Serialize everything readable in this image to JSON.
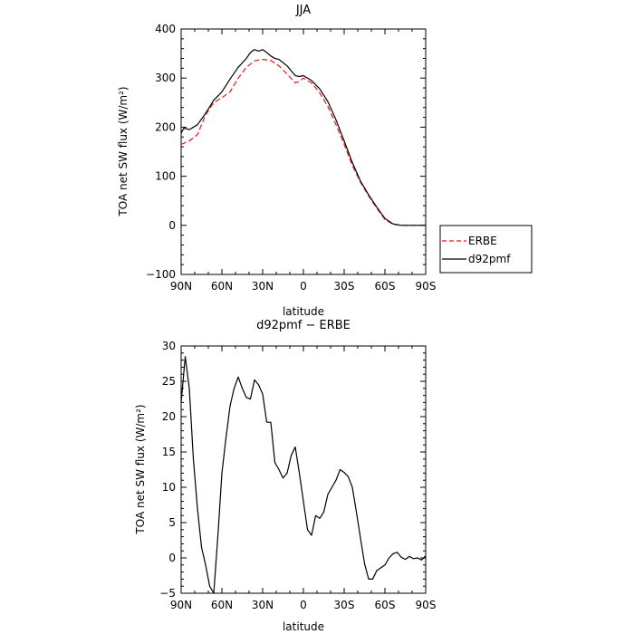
{
  "chart_data": [
    {
      "type": "line",
      "title": "JJA",
      "xlabel": "latitude",
      "ylabel": "TOA net SW flux (W/m²)",
      "xlim": [
        90,
        -90
      ],
      "ylim": [
        -100,
        400
      ],
      "xticks": [
        {
          "value": 90,
          "label": "90N"
        },
        {
          "value": 60,
          "label": "60N"
        },
        {
          "value": 30,
          "label": "30N"
        },
        {
          "value": 0,
          "label": "0"
        },
        {
          "value": -30,
          "label": "30S"
        },
        {
          "value": -60,
          "label": "60S"
        },
        {
          "value": -90,
          "label": "90S"
        }
      ],
      "yticks": [
        -100,
        0,
        100,
        200,
        300,
        400
      ],
      "legend": "outside-right",
      "series": [
        {
          "name": "ERBE",
          "color": "#e41a1c",
          "dash": "dashed",
          "x": [
            90,
            84,
            78,
            72,
            66,
            60,
            54,
            48,
            42,
            36,
            30,
            24,
            18,
            12,
            6,
            3,
            0,
            -6,
            -12,
            -18,
            -24,
            -30,
            -36,
            -42,
            -48,
            -54,
            -60,
            -66,
            -72,
            -78,
            -84,
            -90
          ],
          "y": [
            165,
            172,
            185,
            225,
            250,
            260,
            272,
            300,
            322,
            335,
            338,
            336,
            325,
            308,
            290,
            293,
            300,
            290,
            270,
            242,
            205,
            165,
            122,
            88,
            60,
            35,
            12,
            2,
            0,
            0,
            0,
            0
          ]
        },
        {
          "name": "d92pmf",
          "color": "#000000",
          "dash": "solid",
          "x": [
            90,
            88,
            84,
            78,
            72,
            66,
            60,
            54,
            48,
            42,
            39,
            36,
            33,
            30,
            27,
            24,
            21,
            18,
            12,
            6,
            3,
            0,
            -6,
            -12,
            -18,
            -24,
            -30,
            -36,
            -42,
            -48,
            -54,
            -60,
            -66,
            -72,
            -78,
            -84,
            -90
          ],
          "y": [
            188,
            198,
            195,
            205,
            228,
            255,
            272,
            298,
            322,
            340,
            352,
            358,
            355,
            358,
            352,
            345,
            340,
            338,
            325,
            305,
            303,
            305,
            295,
            278,
            252,
            215,
            172,
            128,
            90,
            62,
            37,
            14,
            3,
            0,
            0,
            0,
            0
          ]
        }
      ]
    },
    {
      "type": "line",
      "title": "d92pmf − ERBE",
      "xlabel": "latitude",
      "ylabel": "TOA net SW flux (W/m²)",
      "xlim": [
        90,
        -90
      ],
      "ylim": [
        -5,
        30
      ],
      "xticks": [
        {
          "value": 90,
          "label": "90N"
        },
        {
          "value": 60,
          "label": "60N"
        },
        {
          "value": 30,
          "label": "30N"
        },
        {
          "value": 0,
          "label": "0"
        },
        {
          "value": -30,
          "label": "30S"
        },
        {
          "value": -60,
          "label": "60S"
        },
        {
          "value": -90,
          "label": "90S"
        }
      ],
      "yticks": [
        -5,
        0,
        5,
        10,
        15,
        20,
        25,
        30
      ],
      "series": [
        {
          "color": "#000000",
          "dash": "solid",
          "x": [
            90,
            87,
            84,
            81,
            78,
            75,
            72,
            69,
            66,
            63,
            60,
            57,
            54,
            51,
            48,
            45,
            42,
            39,
            36,
            33,
            30,
            27,
            24,
            21,
            18,
            15,
            12,
            9,
            6,
            3,
            0,
            -3,
            -6,
            -9,
            -12,
            -15,
            -18,
            -21,
            -24,
            -27,
            -30,
            -33,
            -36,
            -39,
            -42,
            -45,
            -48,
            -51,
            -54,
            -57,
            -60,
            -63,
            -66,
            -69,
            -72,
            -75,
            -78,
            -81,
            -84,
            -87,
            -90
          ],
          "y": [
            22,
            28.5,
            24,
            14,
            7,
            1.5,
            -1,
            -4,
            -5,
            3,
            12,
            17,
            21.5,
            24,
            25.6,
            24,
            22.7,
            22.5,
            25.2,
            24.5,
            23.2,
            19.2,
            19.2,
            13.5,
            12.5,
            11.3,
            12,
            14.5,
            15.7,
            12,
            8,
            4,
            3.2,
            6,
            5.6,
            6.5,
            9,
            10,
            11,
            12.5,
            12.1,
            11.5,
            10,
            6.5,
            2.8,
            -0.8,
            -3,
            -3,
            -1.8,
            -1.4,
            -1,
            0,
            0.6,
            0.8,
            0.1,
            -0.2,
            0.2,
            -0.1,
            0,
            -0.3,
            0.3
          ]
        }
      ]
    }
  ]
}
